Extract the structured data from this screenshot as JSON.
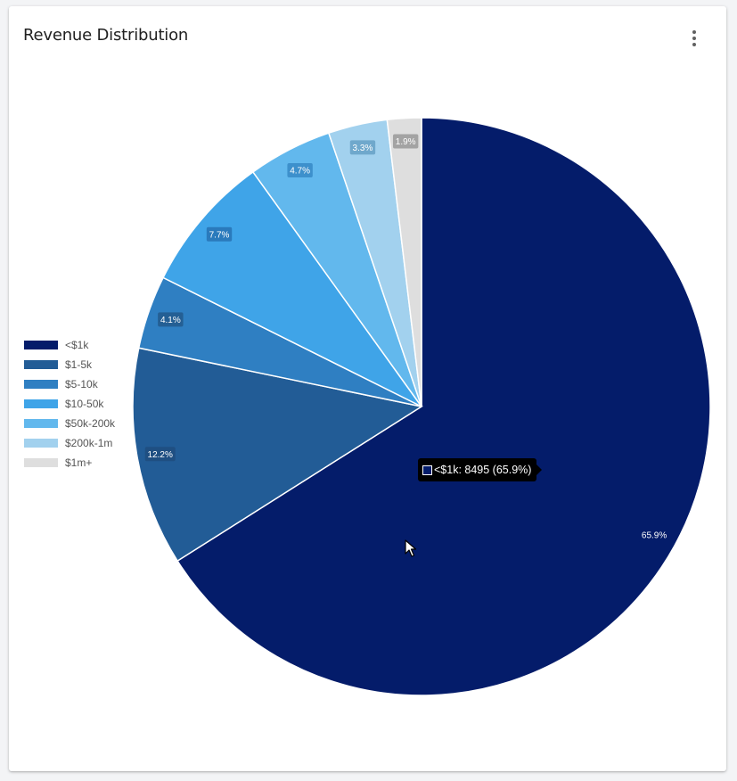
{
  "card": {
    "title": "Revenue Distribution",
    "menu_icon": "more-vertical-icon"
  },
  "chart_data": {
    "type": "pie",
    "categories": [
      "<$1k",
      "$1-5k",
      "$5-10k",
      "$10-50k",
      "$50k-200k",
      "$200k-1m",
      "$1m+"
    ],
    "values": [
      8495,
      1573,
      529,
      993,
      606,
      425,
      245
    ],
    "percent_labels": [
      "65.9%",
      "12.2%",
      "4.1%",
      "7.7%",
      "4.7%",
      "3.3%",
      "1.9%"
    ],
    "colors": [
      "#041c6a",
      "#225c96",
      "#2f7fc2",
      "#3fa4e8",
      "#62b8ed",
      "#a2d1ee",
      "#dedede"
    ],
    "label_bg": [
      "#041c6a",
      "#1f4f82",
      "#245f94",
      "#2a7abc",
      "#3d90cc",
      "#6fa8cc",
      "#a3a3a3"
    ],
    "legend_position": "left",
    "start_angle_deg": 0,
    "direction": "clockwise"
  },
  "tooltip": {
    "text": "<$1k: 8495 (65.9%)",
    "swatch_color": "#041c6a"
  }
}
